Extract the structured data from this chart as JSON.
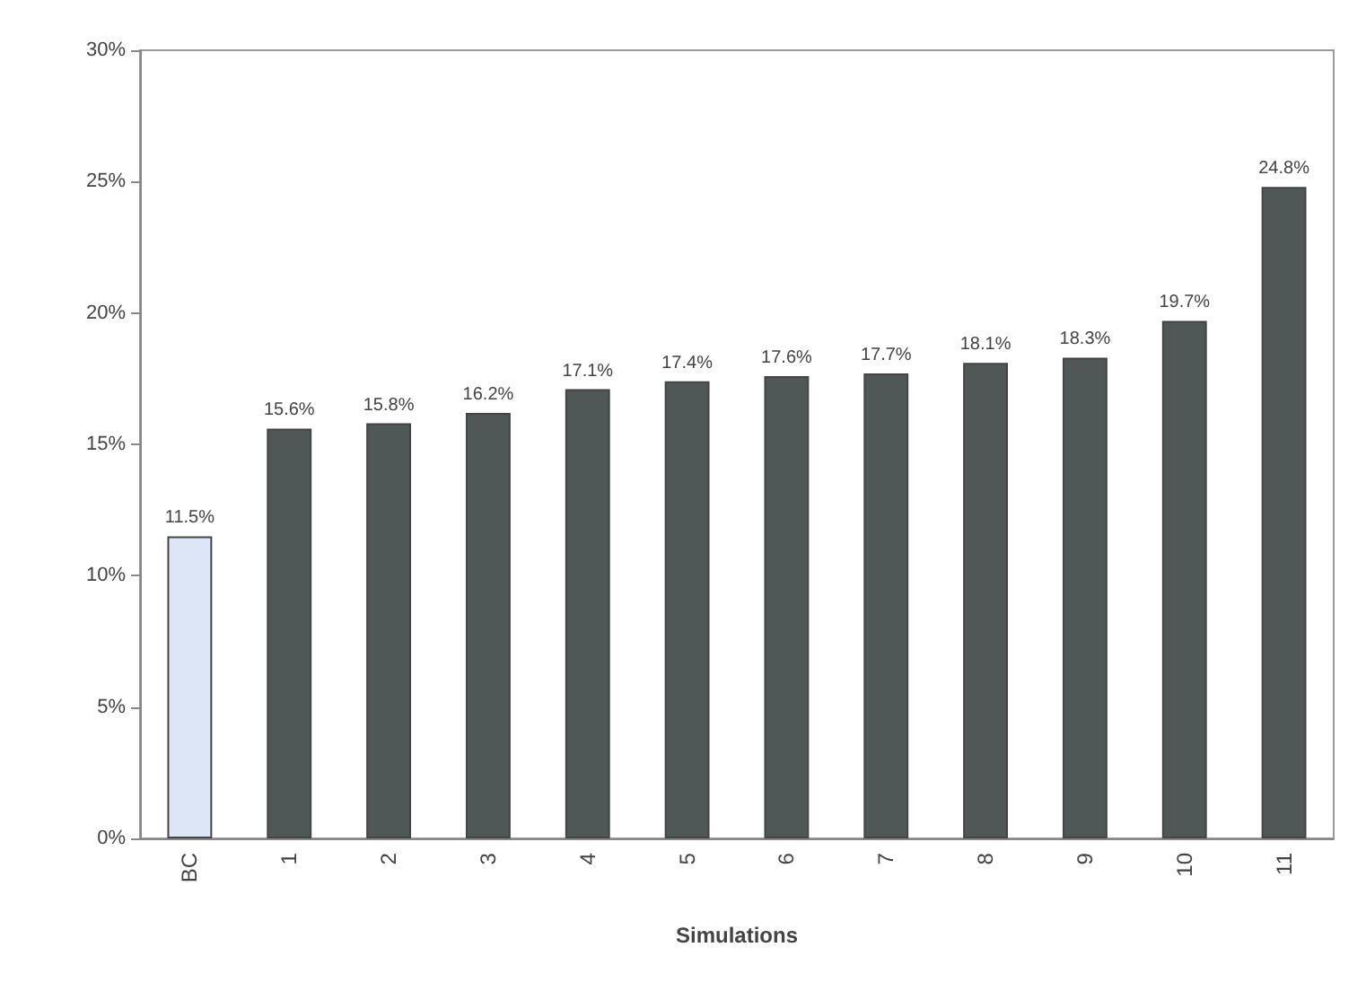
{
  "chart_data": {
    "type": "bar",
    "xlabel": "Simulations",
    "categories": [
      "BC",
      "1",
      "2",
      "3",
      "4",
      "5",
      "6",
      "7",
      "8",
      "9",
      "10",
      "11"
    ],
    "values": [
      11.5,
      15.6,
      15.8,
      16.2,
      17.1,
      17.4,
      17.6,
      17.7,
      18.1,
      18.3,
      19.7,
      24.8
    ],
    "value_labels": [
      "11.5%",
      "15.6%",
      "15.8%",
      "16.2%",
      "17.1%",
      "17.4%",
      "17.6%",
      "17.7%",
      "18.1%",
      "18.3%",
      "19.7%",
      "24.8%"
    ],
    "colors": [
      "#dce6f6",
      "#4f5856",
      "#4f5856",
      "#4f5856",
      "#4f5856",
      "#4f5856",
      "#4f5856",
      "#4f5856",
      "#4f5856",
      "#4f5856",
      "#4f5856",
      "#4f5856"
    ],
    "ylim": [
      0,
      30
    ],
    "yticks": [
      {
        "value": 0,
        "label": "0%"
      },
      {
        "value": 5,
        "label": "5%"
      },
      {
        "value": 10,
        "label": "10%"
      },
      {
        "value": 15,
        "label": "15%"
      },
      {
        "value": 20,
        "label": "20%"
      },
      {
        "value": 25,
        "label": "25%"
      },
      {
        "value": 30,
        "label": "30%"
      }
    ],
    "grid": false
  }
}
